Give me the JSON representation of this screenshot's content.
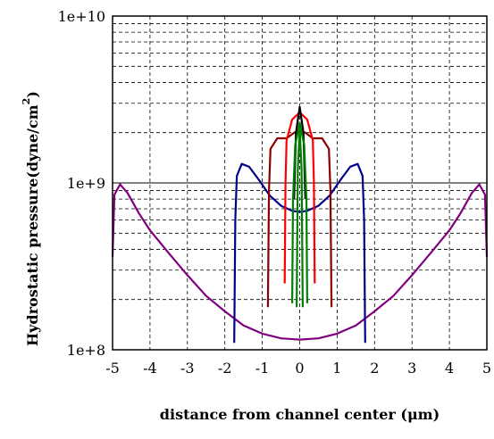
{
  "chart_data": {
    "type": "line",
    "xlabel": "distance from channel center (μm)",
    "ylabel": "Hydrostatic pressure(dyne/cm",
    "ylabel_superscript": "2",
    "ylabel_close": ")",
    "xlim": [
      -5,
      5
    ],
    "ylim": [
      100000000.0,
      10000000000.0
    ],
    "yscale": "log",
    "grid": true,
    "x_ticks": [
      -5,
      -4,
      -3,
      -2,
      -1,
      0,
      1,
      2,
      3,
      4,
      5
    ],
    "x_tick_labels": [
      "-5",
      "-4",
      "-3",
      "-2",
      "-1",
      "0",
      "1",
      "2",
      "3",
      "4",
      "5"
    ],
    "y_ticks": [
      100000000.0,
      1000000000.0,
      10000000000.0
    ],
    "y_tick_labels": [
      "1e+8",
      "1e+9",
      "1e+10"
    ],
    "series": [
      {
        "color": "#800080",
        "points": [
          [
            -5.0,
            360000000.0
          ],
          [
            -4.95,
            850000000.0
          ],
          [
            -4.8,
            980000000.0
          ],
          [
            -4.6,
            870000000.0
          ],
          [
            -4.3,
            660000000.0
          ],
          [
            -4.0,
            520000000.0
          ],
          [
            -3.5,
            380000000.0
          ],
          [
            -3.0,
            280000000.0
          ],
          [
            -2.5,
            210000000.0
          ],
          [
            -2.0,
            170000000.0
          ],
          [
            -1.5,
            140000000.0
          ],
          [
            -1.0,
            125000000.0
          ],
          [
            -0.5,
            117000000.0
          ],
          [
            0.0,
            115000000.0
          ],
          [
            0.5,
            117000000.0
          ],
          [
            1.0,
            125000000.0
          ],
          [
            1.5,
            140000000.0
          ],
          [
            2.0,
            170000000.0
          ],
          [
            2.5,
            210000000.0
          ],
          [
            3.0,
            280000000.0
          ],
          [
            3.5,
            380000000.0
          ],
          [
            4.0,
            520000000.0
          ],
          [
            4.3,
            660000000.0
          ],
          [
            4.6,
            870000000.0
          ],
          [
            4.8,
            980000000.0
          ],
          [
            4.95,
            850000000.0
          ],
          [
            5.0,
            360000000.0
          ]
        ]
      },
      {
        "color": "#00008b",
        "points": [
          [
            -1.75,
            110000000.0
          ],
          [
            -1.72,
            600000000.0
          ],
          [
            -1.68,
            1100000000.0
          ],
          [
            -1.55,
            1300000000.0
          ],
          [
            -1.35,
            1250000000.0
          ],
          [
            -1.1,
            1050000000.0
          ],
          [
            -0.8,
            840000000.0
          ],
          [
            -0.5,
            730000000.0
          ],
          [
            -0.2,
            680000000.0
          ],
          [
            0.0,
            670000000.0
          ],
          [
            0.2,
            680000000.0
          ],
          [
            0.5,
            730000000.0
          ],
          [
            0.8,
            840000000.0
          ],
          [
            1.1,
            1050000000.0
          ],
          [
            1.35,
            1250000000.0
          ],
          [
            1.55,
            1300000000.0
          ],
          [
            1.68,
            1100000000.0
          ],
          [
            1.72,
            600000000.0
          ],
          [
            1.75,
            110000000.0
          ]
        ]
      },
      {
        "color": "#8b0000",
        "points": [
          [
            -0.85,
            180000000.0
          ],
          [
            -0.82,
            900000000.0
          ],
          [
            -0.78,
            1600000000.0
          ],
          [
            -0.6,
            1850000000.0
          ],
          [
            -0.35,
            1850000000.0
          ],
          [
            -0.15,
            2000000000.0
          ],
          [
            0.0,
            2050000000.0
          ],
          [
            0.15,
            2000000000.0
          ],
          [
            0.35,
            1850000000.0
          ],
          [
            0.6,
            1850000000.0
          ],
          [
            0.78,
            1600000000.0
          ],
          [
            0.82,
            900000000.0
          ],
          [
            0.85,
            180000000.0
          ]
        ]
      },
      {
        "color": "#ff0000",
        "points": [
          [
            -0.4,
            250000000.0
          ],
          [
            -0.38,
            1000000000.0
          ],
          [
            -0.35,
            1800000000.0
          ],
          [
            -0.2,
            2400000000.0
          ],
          [
            0.0,
            2650000000.0
          ],
          [
            0.2,
            2400000000.0
          ],
          [
            0.35,
            1800000000.0
          ],
          [
            0.38,
            1000000000.0
          ],
          [
            0.4,
            250000000.0
          ]
        ]
      },
      {
        "color": "#000000",
        "points": [
          [
            -0.15,
            800000000.0
          ],
          [
            -0.1,
            2000000000.0
          ],
          [
            0.0,
            2850000000.0
          ],
          [
            0.1,
            2000000000.0
          ],
          [
            0.15,
            800000000.0
          ]
        ]
      },
      {
        "color": "#008000",
        "points": [
          [
            -0.2,
            190000000.0
          ],
          [
            -0.18,
            800000000.0
          ],
          [
            -0.12,
            1700000000.0
          ],
          [
            -0.05,
            2000000000.0
          ],
          [
            0.0,
            2300000000.0
          ],
          [
            0.05,
            2000000000.0
          ],
          [
            0.12,
            1700000000.0
          ],
          [
            0.18,
            800000000.0
          ],
          [
            0.2,
            190000000.0
          ]
        ]
      },
      {
        "color": "#008000",
        "points": [
          [
            -0.08,
            180000000.0
          ],
          [
            -0.05,
            1200000000.0
          ],
          [
            0.0,
            2100000000.0
          ],
          [
            0.05,
            1200000000.0
          ],
          [
            0.08,
            180000000.0
          ]
        ]
      }
    ]
  }
}
